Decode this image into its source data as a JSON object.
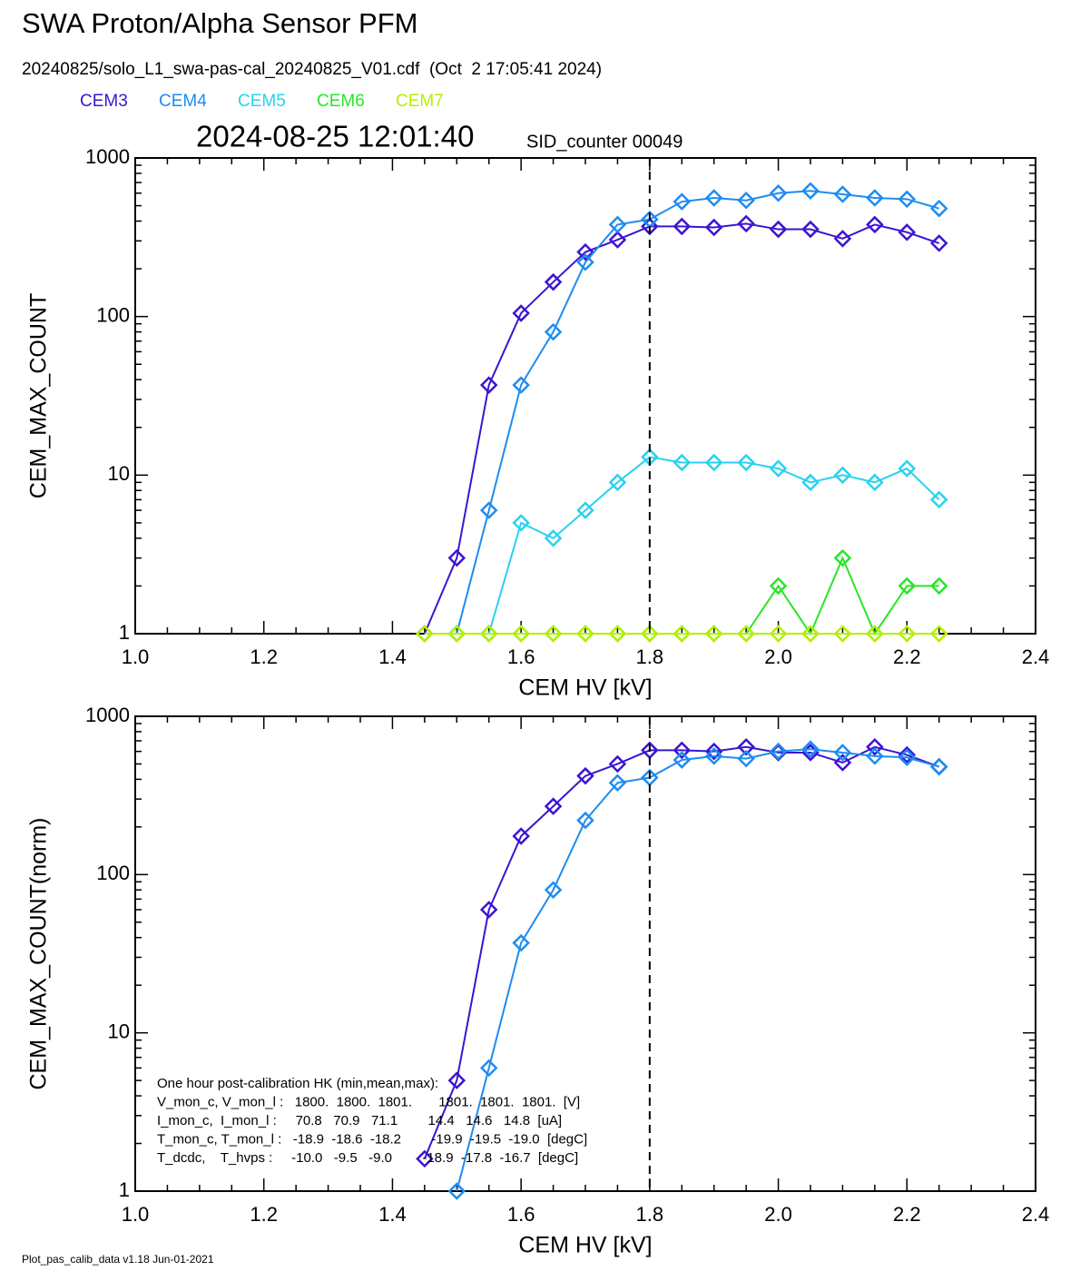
{
  "title": "SWA Proton/Alpha Sensor PFM",
  "subtitle": "20240825/solo_L1_swa-pas-cal_20240825_V01.cdf  (Oct  2 17:05:41 2024)",
  "timestamp": "2024-08-25 12:01:40",
  "sid": "SID_counter 00049",
  "footer": "Plot_pas_calib_data v1.18 Jun-01-2021",
  "chart_data": [
    {
      "type": "line",
      "log_y": true,
      "legend": "top-left",
      "xlabel": "CEM HV [kV]",
      "ylabel": "CEM_MAX_COUNT",
      "xlim": [
        1.0,
        2.4
      ],
      "xticks": [
        {
          "value": 1,
          "label": "1.0"
        },
        1.2,
        1.4,
        1.6,
        1.8,
        {
          "value": 2,
          "label": "2.0"
        },
        2.2,
        2.4
      ],
      "ylim": [
        1,
        1000
      ],
      "yticks": [
        1,
        10,
        100,
        1000
      ],
      "vline": 1.8,
      "x": [
        1.45,
        1.5,
        1.55,
        1.6,
        1.65,
        1.7,
        1.75,
        1.8,
        1.85,
        1.9,
        1.95,
        2.0,
        2.05,
        2.1,
        2.15,
        2.2,
        2.25
      ],
      "series": [
        {
          "name": "CEM3",
          "color": "#3c14d2",
          "values": [
            1,
            3,
            37,
            105,
            165,
            255,
            305,
            370,
            370,
            365,
            385,
            355,
            355,
            310,
            380,
            340,
            290
          ]
        },
        {
          "name": "CEM4",
          "color": "#1e8cf0",
          "values": [
            null,
            1,
            6,
            37,
            80,
            220,
            380,
            410,
            530,
            560,
            540,
            600,
            620,
            590,
            560,
            550,
            480
          ]
        },
        {
          "name": "CEM5",
          "color": "#28d2f0",
          "values": [
            null,
            null,
            1,
            5,
            4,
            6,
            9,
            13,
            12,
            12,
            12,
            11,
            9,
            10,
            9,
            11,
            7
          ]
        },
        {
          "name": "CEM6",
          "color": "#28e628",
          "values": [
            1,
            1,
            1,
            1,
            1,
            1,
            1,
            1,
            1,
            1,
            1,
            2,
            1,
            3,
            1,
            2,
            2
          ]
        },
        {
          "name": "CEM7",
          "color": "#b4f000",
          "values": [
            1,
            1,
            1,
            1,
            1,
            1,
            1,
            1,
            1,
            1,
            1,
            1,
            1,
            1,
            1,
            1,
            1
          ]
        }
      ]
    },
    {
      "type": "line",
      "log_y": true,
      "xlabel": "CEM HV [kV]",
      "ylabel": "CEM_MAX_COUNT(norm)",
      "xlim": [
        1.0,
        2.4
      ],
      "xticks": [
        {
          "value": 1,
          "label": "1.0"
        },
        1.2,
        1.4,
        1.6,
        1.8,
        {
          "value": 2,
          "label": "2.0"
        },
        2.2,
        2.4
      ],
      "ylim": [
        1,
        1000
      ],
      "yticks": [
        1,
        10,
        100,
        1000
      ],
      "vline": 1.8,
      "x": [
        1.45,
        1.5,
        1.55,
        1.6,
        1.65,
        1.7,
        1.75,
        1.8,
        1.85,
        1.9,
        1.95,
        2.0,
        2.05,
        2.1,
        2.15,
        2.2,
        2.25
      ],
      "series": [
        {
          "color": "#3c14d2",
          "values": [
            1.6,
            5,
            60,
            175,
            270,
            420,
            500,
            610,
            610,
            600,
            640,
            590,
            590,
            510,
            640,
            570,
            480
          ]
        },
        {
          "color": "#1e8cf0",
          "values": [
            null,
            1,
            6,
            37,
            80,
            220,
            380,
            410,
            530,
            560,
            540,
            600,
            620,
            590,
            560,
            550,
            480
          ]
        }
      ],
      "annotations": [
        "One hour post-calibration HK (min,mean,max):",
        "V_mon_c, V_mon_l :   1800.  1800.  1801.       1801.  1801.  1801.  [V]",
        "I_mon_c,  I_mon_l :     70.8   70.9   71.1        14.4   14.6   14.8  [uA]",
        "T_mon_c, T_mon_l :   -18.9  -18.6  -18.2        -19.9  -19.5  -19.0  [degC]",
        "T_dcdc,    T_hvps :     -10.0   -9.5   -9.0        -18.9  -17.8  -16.7  [degC]"
      ]
    }
  ]
}
